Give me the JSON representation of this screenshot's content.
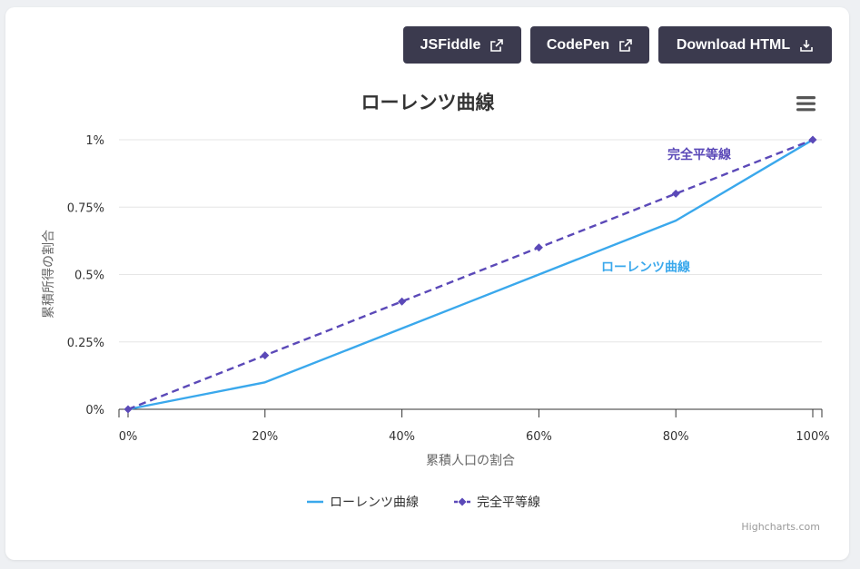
{
  "toolbar": {
    "jsfiddle_label": "JSFiddle",
    "codepen_label": "CodePen",
    "download_label": "Download HTML"
  },
  "credits": "Highcharts.com",
  "chart_data": {
    "type": "line",
    "title": "ローレンツ曲線",
    "xlabel": "累積人口の割合",
    "ylabel": "累積所得の割合",
    "x": [
      0,
      20,
      40,
      60,
      80,
      100
    ],
    "x_tick_labels": [
      "0%",
      "20%",
      "40%",
      "60%",
      "80%",
      "100%"
    ],
    "y_tick_labels": [
      "0%",
      "0.25%",
      "0.5%",
      "0.75%",
      "1%"
    ],
    "y_ticks": [
      0,
      0.25,
      0.5,
      0.75,
      1
    ],
    "xlim": [
      0,
      100
    ],
    "ylim": [
      0,
      1
    ],
    "grid": true,
    "legend_position": "bottom-center",
    "series": [
      {
        "name": "ローレンツ曲線",
        "values": [
          0,
          0.1,
          0.3,
          0.5,
          0.7,
          1
        ],
        "color": "#3aa8ec",
        "dash": "solid",
        "marker": "none"
      },
      {
        "name": "完全平等線",
        "values": [
          0,
          0.2,
          0.4,
          0.6,
          0.8,
          1
        ],
        "color": "#5b49b8",
        "dash": "dashed",
        "marker": "diamond"
      }
    ],
    "annotations": [
      {
        "text": "完全平等線",
        "series": 1,
        "color": "#5b49b8"
      },
      {
        "text": "ローレンツ曲線",
        "series": 0,
        "color": "#3aa8ec"
      }
    ]
  }
}
